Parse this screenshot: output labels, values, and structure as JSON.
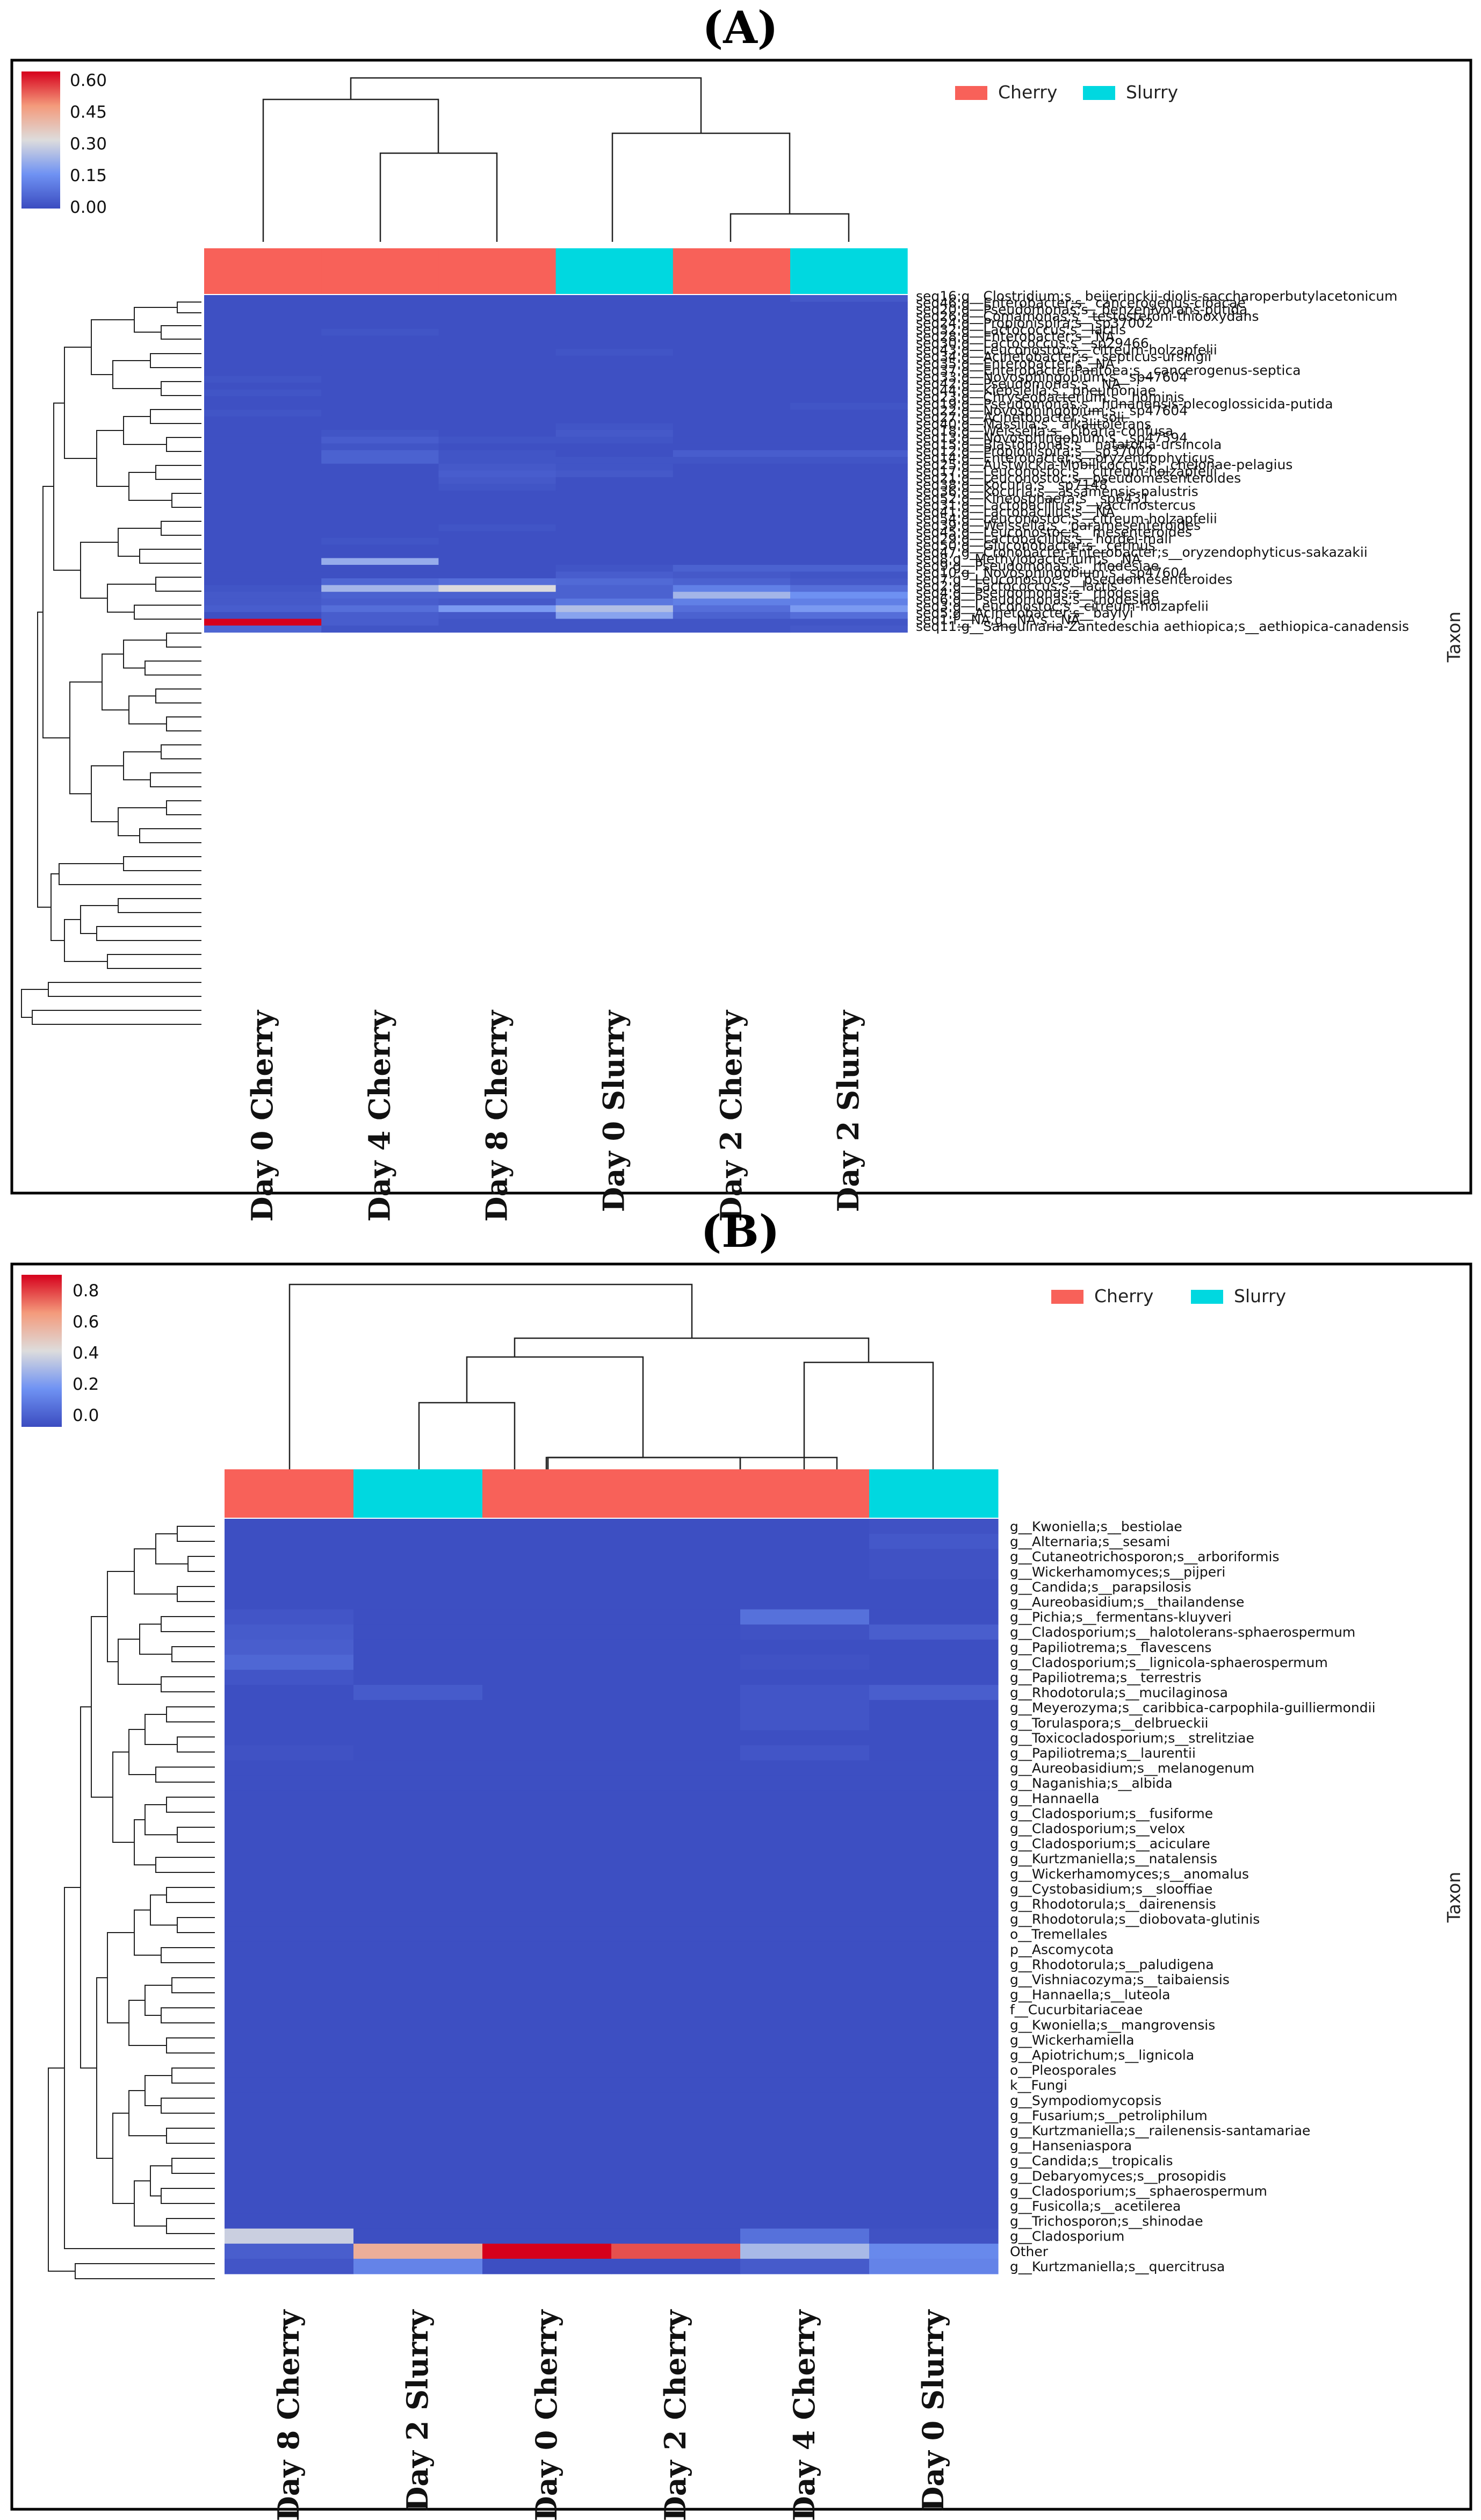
{
  "chart_data": [
    {
      "type": "heatmap",
      "panel_label": "(A)",
      "y_axis_title": "Taxon",
      "colorbar": {
        "ticks": [
          "0.60",
          "0.45",
          "0.30",
          "0.15",
          "0.00"
        ],
        "min": 0,
        "max": 0.65
      },
      "legend": [
        {
          "name": "Cherry",
          "color": "#f86159"
        },
        {
          "name": "Slurry",
          "color": "#00d8e0"
        }
      ],
      "columns": [
        "Day 0 Cherry",
        "Day 4 Cherry",
        "Day 8 Cherry",
        "Day 0 Slurry",
        "Day 2 Cherry",
        "Day 2 Slurry"
      ],
      "column_groups": [
        "Cherry",
        "Cherry",
        "Cherry",
        "Slurry",
        "Cherry",
        "Slurry"
      ],
      "rows": [
        "seq16:g__Clostridium;s__beijerinckii-diolis-saccharoperbutylacetonicum",
        "seq46:g__Enterobacter;s__cancerogenus-cloacae",
        "seq20:g__Pseudomonas;s__benzenivorans-putida",
        "seq26:g__Comamonas;s__testosteroni-thiooxydans",
        "seq24:g__Propionispira;s__sp37002",
        "seq32:g__Lactococcus;s__lactis",
        "seq28:g__Enterobacter;s__NA",
        "seq30:g__Lactococcus;s__sp29466",
        "seq43:g__Leuconostoc;s__citreum-holzapfelii",
        "seq34:g__Acinetobacter;s__septicus-ursingii",
        "seq35:g__Enterobacter;s__NA",
        "seq37:g__Enterobacter-Pantoea;s__cancerogenus-septica",
        "seq33:g__Novosphingobium;s__sp47604",
        "seq42:g__Pseudomonas;s__NA",
        "seq44:g__Klebsiella;s__pneumoniae",
        "seq23:g__Chryseobacterium;s__hominis",
        "seq19:g__Pseudomonas;s__hunanensis-plecoglossicida-putida",
        "seq22:g__Novosphingobium;s__sp47604",
        "seq27:g__Acinetobacter;s__soli",
        "seq40:g__Massilia;s__alkalitolerans",
        "seq18:g__Weissella;s__cibaria-confusa",
        "seq13:g__Novosphingobium;s__sp47594",
        "seq15:g__Blastomonas;s__natatoria-ursincola",
        "seq12:g__Propionispira;s__sp37002",
        "seq14:g__Enterobacter;s__oryzendophyticus",
        "seq25:g__Austwickia-Mobilicoccus;s__chelonae-pelagius",
        "seq17:g__Leuconostoc;s__citreum-holzapfelii",
        "seq21:g__Leuconostoc;s__pseudomesenteroides",
        "seq38:g__Kocuria;s__sp7148",
        "seq36:g__Kocuria;s__assamensis-palustris",
        "seq52:g__Kineosphaera;s__sp6431",
        "seq31:g__Lactobacillus;s__vaccinostercus",
        "seq41:g__Lactobacillus;s__NA",
        "seq54:g__Leuconostoc;s__citreum-holzapfelii",
        "seq39:g__Weissella;s__paramesenteroides",
        "seq45:g__Leuconostoc;s__mesenteroides",
        "seq29:g__Lactobacillus;s__hordei-mali",
        "seq50:g__Gluconobacter;s__cerinus",
        "seq47:g__Cronobacter-Enterobacter;s__oryzendophyticus-sakazakii",
        "seq8:g__Methylobacterium;s__NA",
        "seq9:g__Pseudomonas;s__rhodesiae",
        "seq10:g__Novosphingobium;s__sp47604",
        "seq7:g__Leuconostoc;s__pseudomesenteroides",
        "seq2:g__Lactococcus;s__lactis",
        "seq4:g__Pseudomonas;s__rhodesiae",
        "seq6:g__Pseudomonas;s__rhodesiae",
        "seq3:g__Leuconostoc;s__citreum-holzapfelii",
        "seq5:g__Acinetobacter;s__baylyi",
        "seq1:f__NA;g__NA;s__NA",
        "seq11:g__Sanguinaria-Zantedeschia aethiopica;s__aethiopica-canadensis"
      ],
      "values": [
        [
          0.01,
          0.01,
          0.01,
          0.01,
          0.01,
          0.03
        ],
        [
          0.01,
          0.01,
          0.01,
          0.01,
          0.01,
          0.01
        ],
        [
          0.01,
          0.01,
          0.01,
          0.01,
          0.01,
          0.01
        ],
        [
          0.01,
          0.01,
          0.01,
          0.01,
          0.01,
          0.01
        ],
        [
          0.01,
          0.01,
          0.01,
          0.01,
          0.01,
          0.01
        ],
        [
          0.01,
          0.02,
          0.01,
          0.01,
          0.01,
          0.01
        ],
        [
          0.01,
          0.01,
          0.01,
          0.01,
          0.01,
          0.01
        ],
        [
          0.01,
          0.01,
          0.01,
          0.01,
          0.01,
          0.01
        ],
        [
          0.01,
          0.01,
          0.01,
          0.02,
          0.01,
          0.01
        ],
        [
          0.01,
          0.01,
          0.01,
          0.01,
          0.01,
          0.01
        ],
        [
          0.01,
          0.01,
          0.01,
          0.01,
          0.01,
          0.01
        ],
        [
          0.01,
          0.01,
          0.01,
          0.01,
          0.01,
          0.01
        ],
        [
          0.02,
          0.01,
          0.01,
          0.01,
          0.01,
          0.01
        ],
        [
          0.01,
          0.01,
          0.01,
          0.01,
          0.01,
          0.01
        ],
        [
          0.02,
          0.01,
          0.01,
          0.01,
          0.01,
          0.01
        ],
        [
          0.01,
          0.01,
          0.01,
          0.01,
          0.01,
          0.01
        ],
        [
          0.01,
          0.01,
          0.01,
          0.01,
          0.01,
          0.02
        ],
        [
          0.02,
          0.01,
          0.01,
          0.01,
          0.01,
          0.01
        ],
        [
          0.01,
          0.01,
          0.01,
          0.01,
          0.01,
          0.01
        ],
        [
          0.01,
          0.01,
          0.01,
          0.02,
          0.01,
          0.01
        ],
        [
          0.01,
          0.02,
          0.01,
          0.03,
          0.01,
          0.01
        ],
        [
          0.01,
          0.04,
          0.02,
          0.02,
          0.01,
          0.01
        ],
        [
          0.01,
          0.02,
          0.01,
          0.01,
          0.01,
          0.01
        ],
        [
          0.01,
          0.05,
          0.02,
          0.01,
          0.04,
          0.04
        ],
        [
          0.01,
          0.05,
          0.02,
          0.02,
          0.02,
          0.02
        ],
        [
          0.01,
          0.01,
          0.03,
          0.02,
          0.01,
          0.01
        ],
        [
          0.01,
          0.01,
          0.04,
          0.03,
          0.01,
          0.01
        ],
        [
          0.01,
          0.01,
          0.03,
          0.01,
          0.01,
          0.01
        ],
        [
          0.01,
          0.01,
          0.02,
          0.01,
          0.01,
          0.01
        ],
        [
          0.01,
          0.01,
          0.01,
          0.01,
          0.01,
          0.01
        ],
        [
          0.01,
          0.01,
          0.01,
          0.01,
          0.01,
          0.01
        ],
        [
          0.01,
          0.01,
          0.01,
          0.01,
          0.01,
          0.01
        ],
        [
          0.01,
          0.01,
          0.01,
          0.01,
          0.01,
          0.01
        ],
        [
          0.01,
          0.01,
          0.01,
          0.01,
          0.01,
          0.01
        ],
        [
          0.01,
          0.01,
          0.02,
          0.01,
          0.01,
          0.01
        ],
        [
          0.01,
          0.01,
          0.01,
          0.01,
          0.01,
          0.01
        ],
        [
          0.01,
          0.02,
          0.01,
          0.01,
          0.01,
          0.01
        ],
        [
          0.01,
          0.01,
          0.01,
          0.01,
          0.01,
          0.01
        ],
        [
          0.01,
          0.01,
          0.01,
          0.01,
          0.01,
          0.01
        ],
        [
          0.01,
          0.22,
          0.01,
          0.01,
          0.01,
          0.01
        ],
        [
          0.01,
          0.01,
          0.01,
          0.02,
          0.05,
          0.05
        ],
        [
          0.01,
          0.01,
          0.01,
          0.04,
          0.03,
          0.02
        ],
        [
          0.01,
          0.06,
          0.08,
          0.07,
          0.05,
          0.03
        ],
        [
          0.02,
          0.24,
          0.32,
          0.05,
          0.12,
          0.08
        ],
        [
          0.03,
          0.05,
          0.05,
          0.05,
          0.24,
          0.16
        ],
        [
          0.03,
          0.04,
          0.03,
          0.1,
          0.12,
          0.12
        ],
        [
          0.04,
          0.08,
          0.18,
          0.26,
          0.08,
          0.18
        ],
        [
          0.01,
          0.04,
          0.03,
          0.2,
          0.05,
          0.08
        ],
        [
          0.65,
          0.04,
          0.02,
          0.02,
          0.02,
          0.02
        ],
        [
          0.06,
          0.02,
          0.02,
          0.02,
          0.02,
          0.03
        ]
      ]
    },
    {
      "type": "heatmap",
      "panel_label": "(B)",
      "y_axis_title": "Taxon",
      "colorbar": {
        "ticks": [
          "0.8",
          "0.6",
          "0.4",
          "0.2",
          "0.0"
        ],
        "min": 0,
        "max": 0.92
      },
      "legend": [
        {
          "name": "Cherry",
          "color": "#f86159"
        },
        {
          "name": "Slurry",
          "color": "#00d8e0"
        }
      ],
      "columns": [
        "Day 8 Cherry",
        "Day 2 Slurry",
        "Day 0 Cherry",
        "Day 2 Cherry",
        "Day 4 Cherry",
        "Day 0 Slurry"
      ],
      "column_groups": [
        "Cherry",
        "Slurry",
        "Cherry",
        "Cherry",
        "Cherry",
        "Slurry"
      ],
      "rows": [
        "g__Kwoniella;s__bestiolae",
        "g__Alternaria;s__sesami",
        "g__Cutaneotrichosporon;s__arboriformis",
        "g__Wickerhamomyces;s__pijperi",
        "g__Candida;s__parapsilosis",
        "g__Aureobasidium;s__thailandense",
        "g__Pichia;s__fermentans-kluyveri",
        "g__Cladosporium;s__halotolerans-sphaerospermum",
        "g__Papiliotrema;s__flavescens",
        "g__Cladosporium;s__lignicola-sphaerospermum",
        "g__Papiliotrema;s__terrestris",
        "g__Rhodotorula;s__mucilaginosa",
        "g__Meyerozyma;s__caribbica-carpophila-guilliermondii",
        "g__Torulaspora;s__delbrueckii",
        "g__Toxicocladosporium;s__strelitziae",
        "g__Papiliotrema;s__laurentii",
        "g__Aureobasidium;s__melanogenum",
        "g__Naganishia;s__albida",
        "g__Hannaella",
        "g__Cladosporium;s__fusiforme",
        "g__Cladosporium;s__velox",
        "g__Cladosporium;s__aciculare",
        "g__Kurtzmaniella;s__natalensis",
        "g__Wickerhamomyces;s__anomalus",
        "g__Cystobasidium;s__slooffiae",
        "g__Rhodotorula;s__dairenensis",
        "g__Rhodotorula;s__diobovata-glutinis",
        "o__Tremellales",
        "p__Ascomycota",
        "g__Rhodotorula;s__paludigena",
        "g__Vishniacozyma;s__taibaiensis",
        "g__Hannaella;s__luteola",
        "f__Cucurbitariaceae",
        "g__Kwoniella;s__mangrovensis",
        "g__Wickerhamiella",
        "g__Apiotrichum;s__lignicola",
        "o__Pleosporales",
        "k__Fungi",
        "g__Sympodiomycopsis",
        "g__Fusarium;s__petroliphilum",
        "g__Kurtzmaniella;s__railenensis-santamariae",
        "g__Hanseniaspora",
        "g__Candida;s__tropicalis",
        "g__Debaryomyces;s__prosopidis",
        "g__Cladosporium;s__sphaerospermum",
        "g__Fusicolla;s__acetilerea",
        "g__Trichosporon;s__shinodae",
        "g__Cladosporium",
        "Other",
        "g__Kurtzmaniella;s__quercitrusa"
      ],
      "values": [
        [
          0.01,
          0.01,
          0.01,
          0.01,
          0.01,
          0.02
        ],
        [
          0.01,
          0.01,
          0.01,
          0.01,
          0.01,
          0.04
        ],
        [
          0.01,
          0.01,
          0.01,
          0.01,
          0.01,
          0.02
        ],
        [
          0.01,
          0.01,
          0.01,
          0.01,
          0.01,
          0.02
        ],
        [
          0.01,
          0.01,
          0.01,
          0.01,
          0.01,
          0.01
        ],
        [
          0.01,
          0.01,
          0.01,
          0.01,
          0.01,
          0.01
        ],
        [
          0.03,
          0.01,
          0.01,
          0.01,
          0.12,
          0.01
        ],
        [
          0.05,
          0.01,
          0.01,
          0.01,
          0.02,
          0.06
        ],
        [
          0.06,
          0.01,
          0.01,
          0.01,
          0.01,
          0.01
        ],
        [
          0.09,
          0.01,
          0.01,
          0.01,
          0.02,
          0.01
        ],
        [
          0.03,
          0.01,
          0.01,
          0.01,
          0.01,
          0.01
        ],
        [
          0.01,
          0.05,
          0.01,
          0.01,
          0.03,
          0.06
        ],
        [
          0.01,
          0.01,
          0.01,
          0.01,
          0.03,
          0.01
        ],
        [
          0.01,
          0.01,
          0.01,
          0.01,
          0.03,
          0.01
        ],
        [
          0.01,
          0.01,
          0.01,
          0.01,
          0.01,
          0.01
        ],
        [
          0.02,
          0.01,
          0.01,
          0.01,
          0.03,
          0.01
        ],
        [
          0.01,
          0.01,
          0.01,
          0.01,
          0.01,
          0.01
        ],
        [
          0.01,
          0.01,
          0.01,
          0.01,
          0.01,
          0.01
        ],
        [
          0.01,
          0.01,
          0.01,
          0.01,
          0.01,
          0.01
        ],
        [
          0.01,
          0.01,
          0.01,
          0.01,
          0.01,
          0.01
        ],
        [
          0.01,
          0.01,
          0.01,
          0.01,
          0.01,
          0.01
        ],
        [
          0.01,
          0.01,
          0.01,
          0.01,
          0.01,
          0.01
        ],
        [
          0.01,
          0.01,
          0.01,
          0.01,
          0.01,
          0.01
        ],
        [
          0.01,
          0.01,
          0.01,
          0.01,
          0.01,
          0.01
        ],
        [
          0.01,
          0.01,
          0.01,
          0.01,
          0.01,
          0.01
        ],
        [
          0.01,
          0.01,
          0.01,
          0.01,
          0.01,
          0.01
        ],
        [
          0.01,
          0.01,
          0.01,
          0.01,
          0.01,
          0.01
        ],
        [
          0.01,
          0.01,
          0.01,
          0.01,
          0.01,
          0.01
        ],
        [
          0.01,
          0.01,
          0.01,
          0.01,
          0.01,
          0.01
        ],
        [
          0.01,
          0.01,
          0.01,
          0.01,
          0.01,
          0.01
        ],
        [
          0.01,
          0.01,
          0.01,
          0.01,
          0.01,
          0.01
        ],
        [
          0.01,
          0.01,
          0.01,
          0.01,
          0.01,
          0.01
        ],
        [
          0.01,
          0.01,
          0.01,
          0.01,
          0.01,
          0.01
        ],
        [
          0.01,
          0.01,
          0.01,
          0.01,
          0.01,
          0.01
        ],
        [
          0.01,
          0.01,
          0.01,
          0.01,
          0.01,
          0.01
        ],
        [
          0.01,
          0.01,
          0.01,
          0.01,
          0.01,
          0.01
        ],
        [
          0.01,
          0.01,
          0.01,
          0.01,
          0.01,
          0.01
        ],
        [
          0.01,
          0.01,
          0.01,
          0.01,
          0.01,
          0.01
        ],
        [
          0.01,
          0.01,
          0.01,
          0.01,
          0.01,
          0.01
        ],
        [
          0.01,
          0.01,
          0.01,
          0.01,
          0.01,
          0.01
        ],
        [
          0.01,
          0.01,
          0.01,
          0.01,
          0.01,
          0.01
        ],
        [
          0.01,
          0.01,
          0.01,
          0.01,
          0.01,
          0.01
        ],
        [
          0.01,
          0.01,
          0.01,
          0.01,
          0.01,
          0.01
        ],
        [
          0.01,
          0.01,
          0.01,
          0.01,
          0.01,
          0.01
        ],
        [
          0.01,
          0.01,
          0.01,
          0.01,
          0.01,
          0.01
        ],
        [
          0.01,
          0.01,
          0.01,
          0.01,
          0.01,
          0.01
        ],
        [
          0.01,
          0.01,
          0.01,
          0.01,
          0.01,
          0.01
        ],
        [
          0.42,
          0.01,
          0.01,
          0.01,
          0.12,
          0.02
        ],
        [
          0.06,
          0.62,
          0.92,
          0.8,
          0.35,
          0.2
        ],
        [
          0.03,
          0.18,
          0.01,
          0.01,
          0.05,
          0.18
        ]
      ]
    }
  ]
}
